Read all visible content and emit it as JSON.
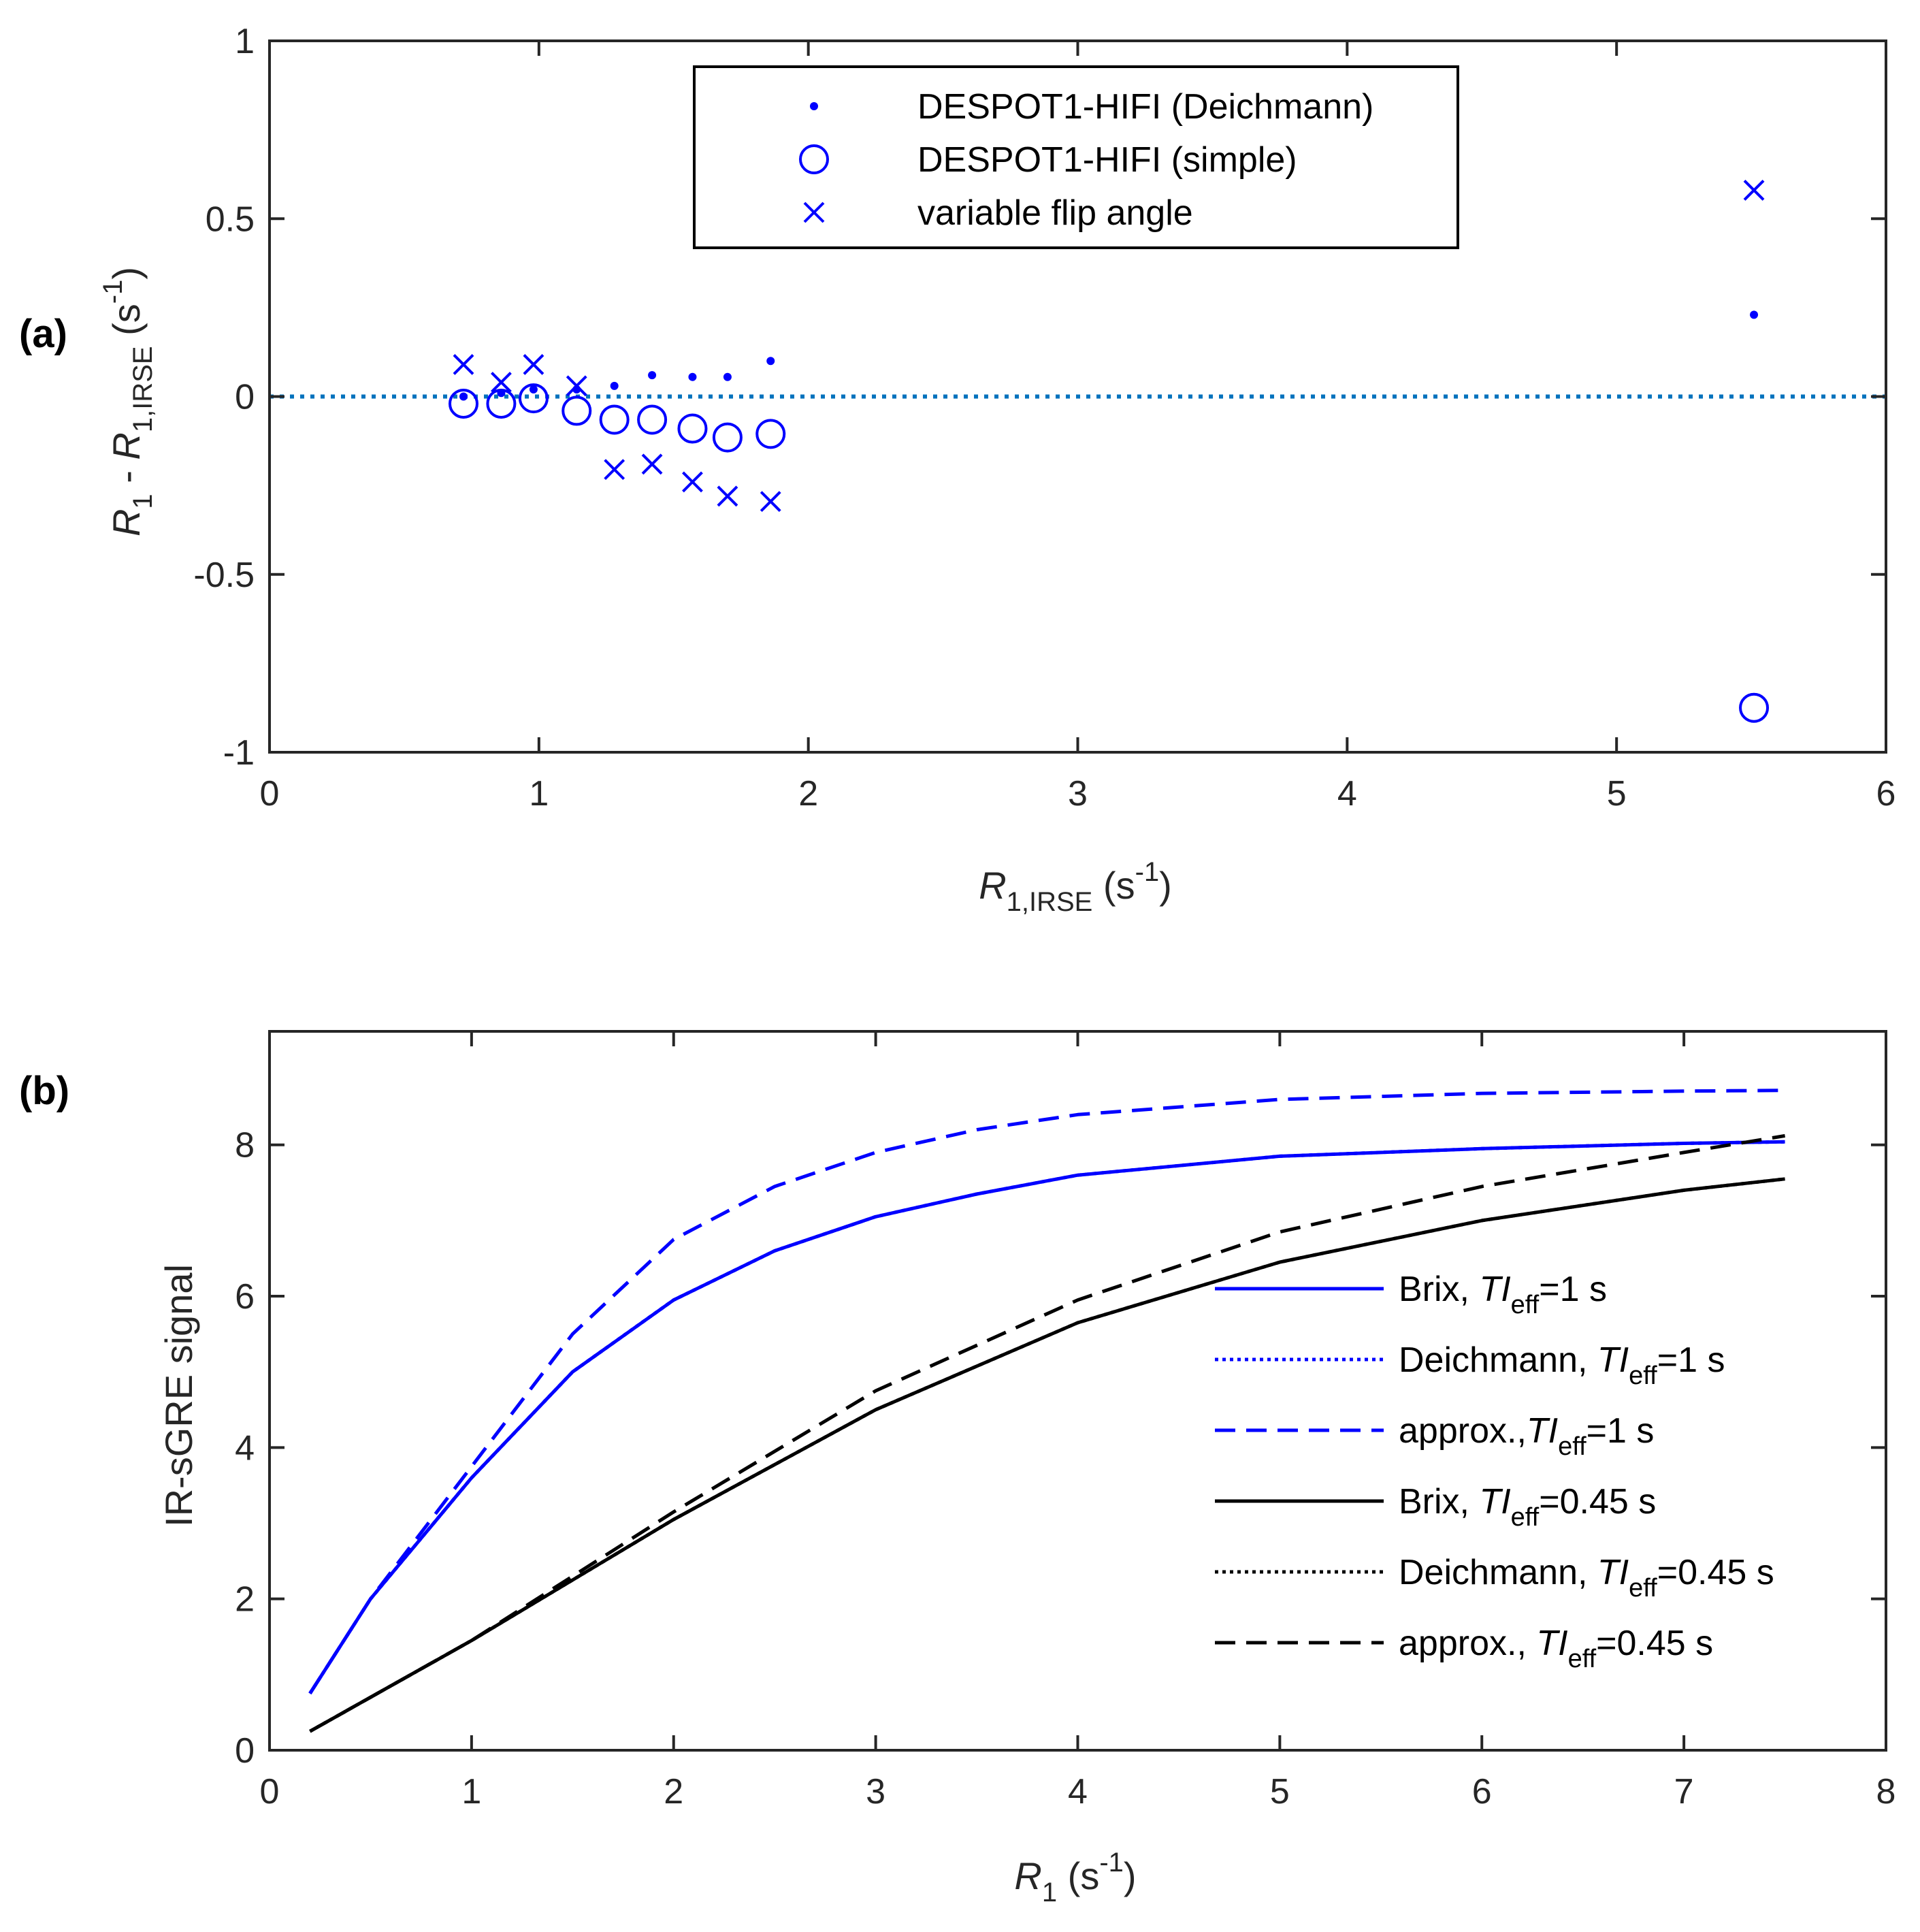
{
  "colors": {
    "blue": "#0000ff",
    "cyan_ref": "#0072bd",
    "black": "#000000",
    "axis": "#262626"
  },
  "chart_data": [
    {
      "panel_label": "(a)",
      "type": "scatter",
      "xlim": [
        0,
        6
      ],
      "ylim": [
        -1,
        1
      ],
      "xticks": [
        0,
        1,
        2,
        3,
        4,
        5,
        6
      ],
      "yticks": [
        -1,
        -0.5,
        0,
        0.5,
        1
      ],
      "xtick_labels": [
        "0",
        "1",
        "2",
        "3",
        "4",
        "5",
        "6"
      ],
      "ytick_labels": [
        "-1",
        "-0.5",
        "0",
        "0.5",
        "1"
      ],
      "xlabel": {
        "main": "R",
        "sub": "1,IRSE",
        "unit_open": " (s",
        "unit_exp": "-1",
        "unit_close": ")"
      },
      "ylabel": {
        "a": "R",
        "a_sub": "1",
        "mid": " - ",
        "b": "R",
        "b_sub": "1,IRSE",
        "unit_open": " (s",
        "unit_exp": "-1",
        "unit_close": ")"
      },
      "reference_line": {
        "y": 0,
        "style": "dotted"
      },
      "legend": {
        "position": "top-center",
        "entries": [
          "DESPOT1-HIFI (Deichmann)",
          "DESPOT1-HIFI (simple)",
          "variable flip angle"
        ]
      },
      "series": [
        {
          "name": "DESPOT1-HIFI (Deichmann)",
          "marker": "dot",
          "x": [
            0.72,
            0.86,
            0.98,
            1.14,
            1.28,
            1.42,
            1.57,
            1.7,
            1.86,
            5.51
          ],
          "y": [
            0.0,
            0.01,
            0.02,
            0.02,
            0.03,
            0.06,
            0.055,
            0.055,
            0.1,
            0.23
          ]
        },
        {
          "name": "DESPOT1-HIFI (simple)",
          "marker": "circle",
          "x": [
            0.72,
            0.86,
            0.98,
            1.14,
            1.28,
            1.42,
            1.57,
            1.7,
            1.86,
            5.51
          ],
          "y": [
            -0.02,
            -0.02,
            -0.005,
            -0.04,
            -0.065,
            -0.065,
            -0.09,
            -0.115,
            -0.105,
            -0.875
          ]
        },
        {
          "name": "variable flip angle",
          "marker": "x",
          "x": [
            0.72,
            0.86,
            0.98,
            1.14,
            1.28,
            1.42,
            1.57,
            1.7,
            1.86,
            5.51
          ],
          "y": [
            0.09,
            0.04,
            0.09,
            0.03,
            -0.205,
            -0.19,
            -0.24,
            -0.28,
            -0.295,
            0.58
          ]
        }
      ]
    },
    {
      "panel_label": "(b)",
      "type": "line",
      "xlim": [
        0,
        8
      ],
      "ylim": [
        0,
        9.5
      ],
      "xticks": [
        0,
        1,
        2,
        3,
        4,
        5,
        6,
        7,
        8
      ],
      "yticks": [
        0,
        2,
        4,
        6,
        8
      ],
      "xtick_labels": [
        "0",
        "1",
        "2",
        "3",
        "4",
        "5",
        "6",
        "7",
        "8"
      ],
      "ytick_labels": [
        "0",
        "2",
        "4",
        "6",
        "8"
      ],
      "xlabel": {
        "main": "R",
        "sub": "1",
        "unit_open": " (s",
        "unit_exp": "-1",
        "unit_close": ")"
      },
      "ylabel": {
        "text": "IR-sGRE signal"
      },
      "legend": {
        "position": "lower-right"
      },
      "series": [
        {
          "name": "Brix",
          "ti": "=1 s",
          "sep": ", ",
          "color": "#0000ff",
          "style": "solid",
          "x": [
            0.2,
            0.5,
            1.0,
            1.5,
            2.0,
            2.5,
            3.0,
            3.5,
            4.0,
            5.0,
            6.0,
            7.0,
            7.5
          ],
          "y": [
            0.75,
            2.0,
            3.6,
            5.0,
            5.95,
            6.6,
            7.05,
            7.35,
            7.6,
            7.85,
            7.95,
            8.02,
            8.04
          ]
        },
        {
          "name": "Deichmann",
          "ti": "=1 s",
          "sep": ", ",
          "color": "#0000ff",
          "style": "dotted",
          "x": [
            0.2,
            0.5,
            1.0,
            1.5,
            2.0,
            2.5,
            3.0,
            3.5,
            4.0,
            5.0,
            6.0,
            7.0,
            7.5
          ],
          "y": [
            0.75,
            2.0,
            3.6,
            5.0,
            5.95,
            6.6,
            7.05,
            7.35,
            7.6,
            7.85,
            7.95,
            8.02,
            8.04
          ]
        },
        {
          "name": "approx.",
          "ti": "=1 s",
          "sep": ",",
          "color": "#0000ff",
          "style": "dashed",
          "x": [
            0.2,
            0.5,
            1.0,
            1.5,
            2.0,
            2.5,
            3.0,
            3.5,
            4.0,
            5.0,
            6.0,
            7.0,
            7.5
          ],
          "y": [
            0.75,
            2.0,
            3.75,
            5.5,
            6.75,
            7.45,
            7.9,
            8.2,
            8.4,
            8.6,
            8.68,
            8.71,
            8.72
          ]
        },
        {
          "name": "Brix",
          "ti": "=0.45 s",
          "sep": ", ",
          "color": "#000000",
          "style": "solid",
          "x": [
            0.2,
            1.0,
            2.0,
            3.0,
            4.0,
            5.0,
            6.0,
            7.0,
            7.5
          ],
          "y": [
            0.25,
            1.45,
            3.05,
            4.5,
            5.65,
            6.45,
            7.0,
            7.4,
            7.55
          ]
        },
        {
          "name": "Deichmann",
          "ti": "=0.45 s",
          "sep": ", ",
          "color": "#000000",
          "style": "dotted",
          "x": [
            0.2,
            1.0,
            2.0,
            3.0,
            4.0,
            5.0,
            6.0,
            7.0,
            7.5
          ],
          "y": [
            0.25,
            1.45,
            3.05,
            4.5,
            5.65,
            6.45,
            7.0,
            7.4,
            7.55
          ]
        },
        {
          "name": "approx.",
          "ti": "=0.45 s",
          "sep": ", ",
          "color": "#000000",
          "style": "dashed",
          "x": [
            0.2,
            1.0,
            2.0,
            3.0,
            4.0,
            5.0,
            6.0,
            7.0,
            7.5
          ],
          "y": [
            0.25,
            1.45,
            3.15,
            4.75,
            5.95,
            6.85,
            7.45,
            7.9,
            8.12
          ]
        }
      ],
      "legend_ti_label": {
        "main": "TI",
        "sub": "eff"
      }
    }
  ]
}
